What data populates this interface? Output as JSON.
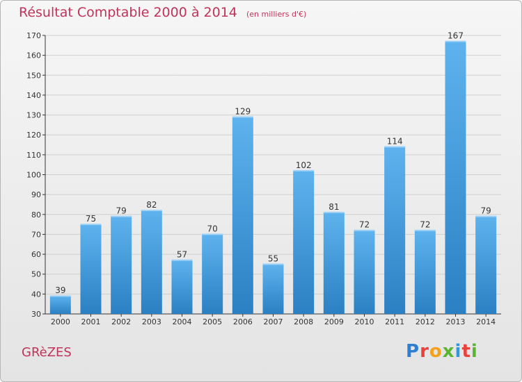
{
  "title": "Résultat Comptable 2000 à 2014",
  "subtitle": "(en milliers d'€)",
  "commune": "GRèZES",
  "logo_text": "Proxiti",
  "colors": {
    "title": "#c0335a",
    "bar_light": "#5eb3ee",
    "bar_dark": "#2a80c2",
    "axis": "#333333"
  },
  "chart_data": {
    "type": "bar",
    "categories": [
      "2000",
      "2001",
      "2002",
      "2003",
      "2004",
      "2005",
      "2006",
      "2007",
      "2008",
      "2009",
      "2010",
      "2011",
      "2012",
      "2013",
      "2014"
    ],
    "values": [
      39,
      75,
      79,
      82,
      57,
      70,
      129,
      55,
      102,
      81,
      72,
      114,
      72,
      167,
      79
    ],
    "ylim": [
      30,
      170
    ],
    "yticks": [
      30,
      40,
      50,
      60,
      70,
      80,
      90,
      100,
      110,
      120,
      130,
      140,
      150,
      160,
      170
    ],
    "grid": true,
    "data_labels": true
  }
}
